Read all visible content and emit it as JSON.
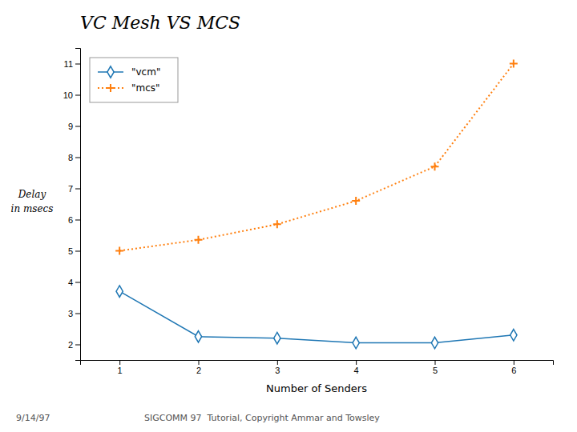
{
  "chart_data": {
    "type": "line",
    "title": "VC Mesh VS MCS",
    "xlabel": "Number of Senders",
    "annotations": [
      "Delay",
      "in msecs",
      "9/14/97",
      "SIGCOMM 97  Tutorial, Copyright Ammar and Towsley"
    ],
    "x": [
      1,
      2,
      3,
      4,
      5,
      6
    ],
    "series": [
      {
        "name": "\"vcm\"",
        "values": [
          3.7,
          2.25,
          2.2,
          2.05,
          2.05,
          2.3
        ],
        "marker": "diamond",
        "line_style": "solid"
      },
      {
        "name": "\"mcs\"",
        "values": [
          5.0,
          5.35,
          5.85,
          6.6,
          7.7,
          11.0
        ],
        "marker": "plus",
        "line_style": "dotted"
      }
    ],
    "xlim": [
      0.5,
      6.5
    ],
    "ylim": [
      1.5,
      11.5
    ],
    "xticks": [
      1,
      2,
      3,
      4,
      5,
      6
    ],
    "yticks": [
      2,
      3,
      4,
      5,
      6,
      7,
      8,
      9,
      10,
      11
    ],
    "grid": false,
    "legend": "upper left"
  }
}
